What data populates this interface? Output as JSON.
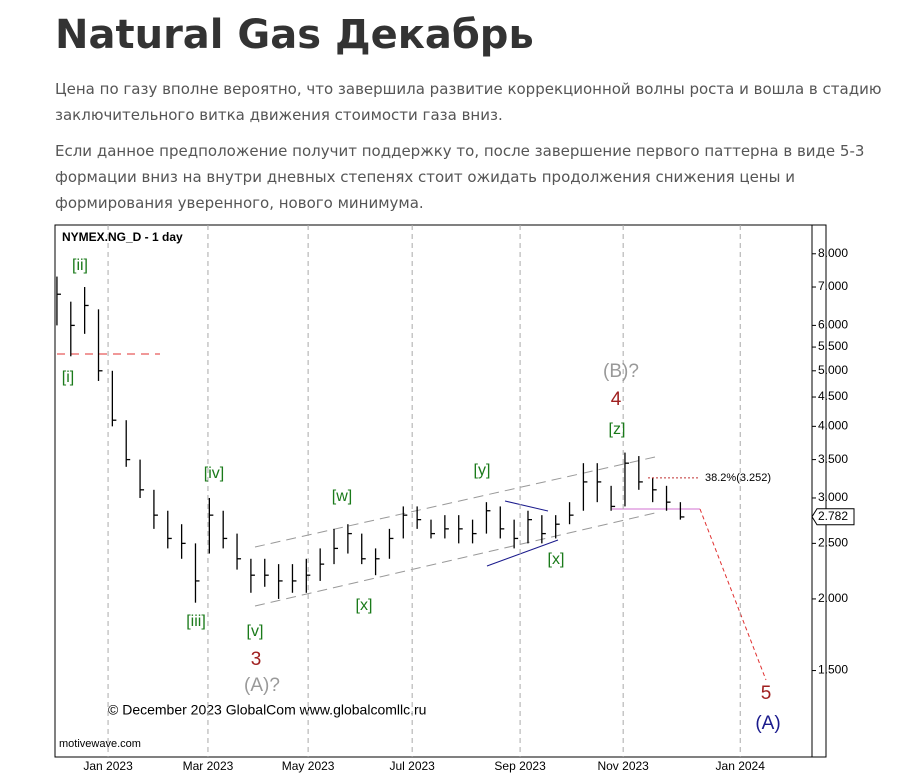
{
  "header": {
    "title": "Natural Gas Декабрь"
  },
  "paragraphs": [
    "Цена по газу вполне вероятно, что завершила развитие коррекционной волны роста и вошла в стадию заключительного витка движения стоимости газа вниз.",
    "Если данное предположение получит поддержку то, после завершение первого паттерна в виде 5-3 формации вниз на внутри дневных степенях стоит ожидать продолжения снижения цены и формирования уверенного, нового минимума."
  ],
  "chart_data": {
    "type": "ohlc",
    "title": "NYMEX.NG_D - 1 day",
    "watermark": "© December 2023 GlobalCom www.globalcomllc.ru",
    "source": "motivewave.com",
    "color": "#000000",
    "log_scale": true,
    "grid": "x",
    "high": [
      7.3,
      6.6,
      7.0,
      6.4,
      5.0,
      4.1,
      3.5,
      3.1,
      2.85,
      2.7,
      2.5,
      3.0,
      2.85,
      2.6,
      2.35,
      2.35,
      2.3,
      2.3,
      2.35,
      2.45,
      2.65,
      2.7,
      2.6,
      2.45,
      2.65,
      2.9,
      2.9,
      2.75,
      2.8,
      2.8,
      2.75,
      2.95,
      2.9,
      2.75,
      2.85,
      2.8,
      2.8,
      2.95,
      3.45,
      3.45,
      3.15,
      3.6,
      3.55,
      3.25,
      3.15,
      2.95
    ],
    "low": [
      6.0,
      5.3,
      5.8,
      4.8,
      4.0,
      3.4,
      3.0,
      2.65,
      2.45,
      2.35,
      1.97,
      2.4,
      2.45,
      2.25,
      2.05,
      2.1,
      2.0,
      2.05,
      2.05,
      2.15,
      2.3,
      2.4,
      2.3,
      2.2,
      2.35,
      2.55,
      2.65,
      2.55,
      2.55,
      2.5,
      2.5,
      2.6,
      2.55,
      2.45,
      2.5,
      2.5,
      2.55,
      2.7,
      2.85,
      2.95,
      2.85,
      2.9,
      3.1,
      2.95,
      2.85,
      2.75
    ],
    "close": [
      6.8,
      6.0,
      6.5,
      5.0,
      4.1,
      3.5,
      3.1,
      2.8,
      2.55,
      2.5,
      2.15,
      2.8,
      2.55,
      2.35,
      2.2,
      2.2,
      2.15,
      2.15,
      2.2,
      2.3,
      2.45,
      2.6,
      2.35,
      2.35,
      2.55,
      2.8,
      2.75,
      2.6,
      2.65,
      2.65,
      2.6,
      2.85,
      2.65,
      2.55,
      2.75,
      2.6,
      2.7,
      2.8,
      3.2,
      3.2,
      2.9,
      3.45,
      3.2,
      3.1,
      2.95,
      2.78
    ],
    "xlim": [
      -0.14,
      54.5
    ],
    "xticks": [
      {
        "value": 3.69,
        "label": "Jan 2023"
      },
      {
        "value": 10.9,
        "label": "Mar 2023"
      },
      {
        "value": 18.13,
        "label": "May 2023"
      },
      {
        "value": 25.64,
        "label": "Jul 2023"
      },
      {
        "value": 33.43,
        "label": "Sep 2023"
      },
      {
        "value": 40.87,
        "label": "Nov 2023"
      },
      {
        "value": 49.32,
        "label": "Jan 2024"
      }
    ],
    "ylim": [
      1.06,
      8.98
    ],
    "yticks": [
      {
        "value": 8,
        "label": "8.000"
      },
      {
        "value": 7,
        "label": "7.000"
      },
      {
        "value": 6,
        "label": "6.000"
      },
      {
        "value": 5.5,
        "label": "5.500"
      },
      {
        "value": 5,
        "label": "5.000"
      },
      {
        "value": 4.5,
        "label": "4.500"
      },
      {
        "value": 4,
        "label": "4.000"
      },
      {
        "value": 3.5,
        "label": "3.500"
      },
      {
        "value": 3,
        "label": "3.000"
      },
      {
        "value": 2.5,
        "label": "2.500"
      },
      {
        "value": 2,
        "label": "2.000"
      },
      {
        "value": 1.5,
        "label": "1.500"
      }
    ],
    "last_price": 2.782,
    "fib_level": {
      "value": 3.252,
      "label": "38.2%(3.252)"
    },
    "annotations": [
      {
        "text": "[ii]",
        "color": "#1a7a1a"
      },
      {
        "text": "[i]",
        "color": "#1a7a1a"
      },
      {
        "text": "[iii]",
        "color": "#1a7a1a"
      },
      {
        "text": "[iv]",
        "color": "#1a7a1a"
      },
      {
        "text": "[v]",
        "color": "#1a7a1a"
      },
      {
        "text": "3",
        "color": "#a02020"
      },
      {
        "text": "(A)?",
        "color": "#999999"
      },
      {
        "text": "[w]",
        "color": "#1a7a1a"
      },
      {
        "text": "[x]",
        "color": "#1a7a1a"
      },
      {
        "text": "[y]",
        "color": "#1a7a1a"
      },
      {
        "text": "[x]",
        "color": "#1a7a1a"
      },
      {
        "text": "[z]",
        "color": "#1a7a1a"
      },
      {
        "text": "4",
        "color": "#a02020"
      },
      {
        "text": "(B)?",
        "color": "#999999"
      },
      {
        "text": "5",
        "color": "#a02020"
      },
      {
        "text": "(A)",
        "color": "#1a1a8c"
      }
    ]
  }
}
